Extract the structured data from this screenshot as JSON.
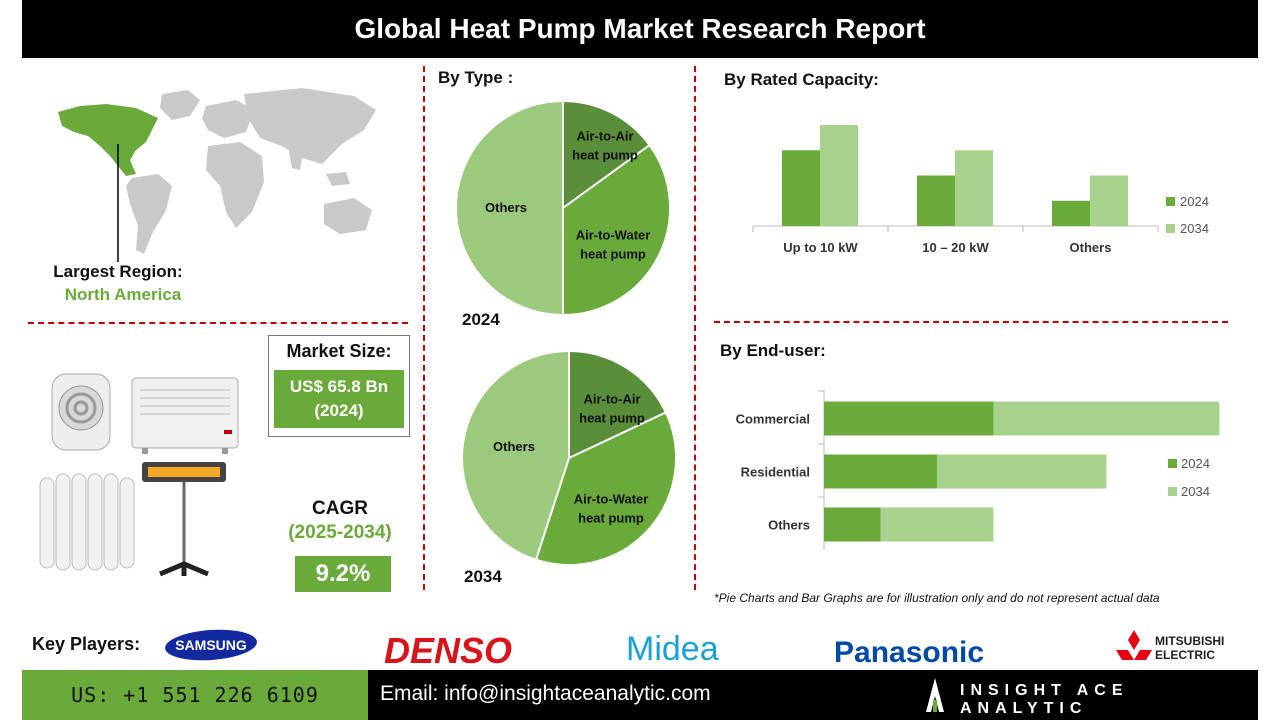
{
  "title": "Global Heat Pump Market Research Report",
  "region": {
    "label": "Largest Region:",
    "value": "North America"
  },
  "market_size": {
    "label": "Market Size:",
    "value_line1": "US$ 65.8 Bn",
    "value_line2": "(2024)"
  },
  "cagr": {
    "label": "CAGR",
    "period": "(2025-2034)",
    "value": "9.2%"
  },
  "sections": {
    "by_type": "By  Type :",
    "by_capacity": "By Rated Capacity:",
    "by_end_user": "By End-user:"
  },
  "note": "*Pie Charts and Bar Graphs are for illustration only and do not represent actual data",
  "key_players": {
    "label": "Key Players:",
    "brands": [
      "SAMSUNG",
      "DENSO",
      "Midea",
      "Panasonic",
      "MITSUBISHI",
      "ELECTRIC"
    ]
  },
  "footer": {
    "phone": "US: +1 551 226 6109",
    "email": "Email: info@insightaceanalytic.com",
    "brand": "INSIGHT ACE ANALYTIC"
  },
  "colors": {
    "dark_green": "#5a9a3a",
    "mid_green": "#6aaa3a",
    "light_green": "#9bc97d",
    "lighter_green": "#a9d18e",
    "dash_red": "#c00000"
  },
  "chart_data": [
    {
      "type": "pie",
      "year_label": "2024",
      "labels": [
        [
          "Air-to-Air",
          "heat pump"
        ],
        [
          "Air-to-Water",
          "heat pump"
        ],
        [
          "Others"
        ]
      ],
      "values": [
        15,
        35,
        50
      ],
      "colors": [
        "#5a8e3b",
        "#6aaa3a",
        "#9bc97d"
      ]
    },
    {
      "type": "pie",
      "year_label": "2034",
      "labels": [
        [
          "Air-to-Air",
          "heat pump"
        ],
        [
          "Air-to-Water",
          "heat pump"
        ],
        [
          "Others"
        ]
      ],
      "values": [
        18,
        37,
        45
      ],
      "colors": [
        "#5a8e3b",
        "#6aaa3a",
        "#9bc97d"
      ]
    },
    {
      "type": "bar",
      "orientation": "vertical",
      "categories": [
        "Up to 10 kW",
        "10 – 20 kW",
        "Others"
      ],
      "series": [
        {
          "name": "2024",
          "values": [
            3,
            2,
            1
          ],
          "color": "#6aaa3a"
        },
        {
          "name": "2034",
          "values": [
            4,
            3,
            2
          ],
          "color": "#a9d18e"
        }
      ],
      "ylim": [
        0,
        4.2
      ],
      "legend": "right"
    },
    {
      "type": "bar",
      "orientation": "horizontal-stacked",
      "categories": [
        "Commercial",
        "Residential",
        "Others"
      ],
      "series": [
        {
          "name": "2024",
          "values": [
            3,
            2,
            1
          ],
          "color": "#6aaa3a"
        },
        {
          "name": "2034",
          "values": [
            4,
            3,
            2
          ],
          "color": "#a9d18e"
        }
      ],
      "xlim": [
        0,
        7.4
      ],
      "legend": "right"
    }
  ]
}
